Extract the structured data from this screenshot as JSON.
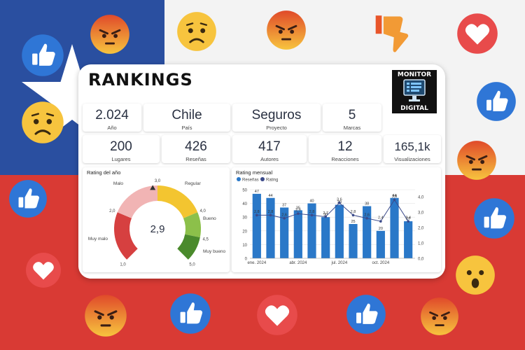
{
  "header": {
    "title": "RANKINGS",
    "logo_line1": "MONITOR",
    "logo_line2": "DIGITAL"
  },
  "kpis_row1": [
    {
      "value": "2.024",
      "caption": "Año"
    },
    {
      "value": "Chile",
      "caption": "País"
    },
    {
      "value": "Seguros",
      "caption": "Proyecto"
    },
    {
      "value": "5",
      "caption": "Marcas"
    }
  ],
  "kpis_row2": [
    {
      "value": "200",
      "caption": "Lugares"
    },
    {
      "value": "426",
      "caption": "Reseñas"
    },
    {
      "value": "417",
      "caption": "Autores"
    },
    {
      "value": "12",
      "caption": "Reacciones"
    },
    {
      "value": "165,1k",
      "caption": "Visualizaciones"
    }
  ],
  "gauge": {
    "title": "Rating del año",
    "value": "2,9",
    "value_num": 2.9,
    "labels": [
      "Malo",
      "Regular",
      "Bueno",
      "Muy malo",
      "Muy bueno"
    ],
    "ticks": [
      "1,0",
      "2,0",
      "3,0",
      "4,0",
      "4,5",
      "5,0"
    ],
    "colors": {
      "red": "#d64040",
      "pink": "#f1b4b4",
      "yellow": "#f3c530",
      "lightgreen": "#8cc04a",
      "green": "#4a8a2c"
    }
  },
  "chart_data": {
    "type": "bar",
    "title": "Rating mensual",
    "legend": [
      "Reseñas",
      "Rating"
    ],
    "legend_position": "top-left",
    "categories": [
      "ene. 2024",
      "feb. 2024",
      "mar. 2024",
      "abr. 2024",
      "may. 2024",
      "jun. 2024",
      "jul. 2024",
      "ago. 2024",
      "sep. 2024",
      "oct. 2024",
      "nov. 2024",
      "dic. 2024"
    ],
    "x_tick_labels": [
      "ene. 2024",
      "abr. 2024",
      "jul. 2024",
      "oct. 2024"
    ],
    "series": [
      {
        "name": "Reseñas",
        "type": "bar",
        "values": [
          47,
          44,
          37,
          35,
          40,
          30,
          39,
          25,
          38,
          20,
          44,
          27
        ],
        "color": "#2a78c8"
      },
      {
        "name": "Rating",
        "type": "line",
        "values": [
          2.8,
          2.8,
          2.6,
          2.9,
          2.8,
          2.7,
          3.6,
          2.8,
          2.6,
          2.4,
          3.8,
          2.4
        ],
        "color": "#3b4a8a"
      }
    ],
    "bar_labels": [
      "47",
      "44",
      "37",
      "35",
      "40",
      "30",
      "39",
      "25",
      "38",
      "20",
      "44",
      "27"
    ],
    "line_labels": [
      "2,8",
      "2,8",
      "2,6",
      "2,9",
      "2,8",
      "2,7",
      "3,6",
      "2,8",
      "2,6",
      "2,4",
      "3,8",
      "2,4"
    ],
    "y_ticks": [
      "0",
      "10",
      "20",
      "30",
      "40",
      "50"
    ],
    "y2_ticks": [
      "0,0",
      "1,0",
      "2,0",
      "3,0",
      "4,0"
    ],
    "ylim": [
      0,
      50
    ],
    "y2lim": [
      0,
      4
    ],
    "grid": true
  },
  "background": {
    "reactions": [
      "thumbs-up",
      "angry",
      "sad",
      "angry",
      "thumbs-down",
      "heart",
      "thumbs-up",
      "sad",
      "angry",
      "thumbs-up",
      "thumbs-up",
      "heart",
      "wow",
      "angry",
      "thumbs-up",
      "heart",
      "thumbs-up",
      "angry"
    ],
    "colors": {
      "blue": "#2a4fa0",
      "white": "#f3f3f3",
      "red": "#d93a34"
    }
  }
}
